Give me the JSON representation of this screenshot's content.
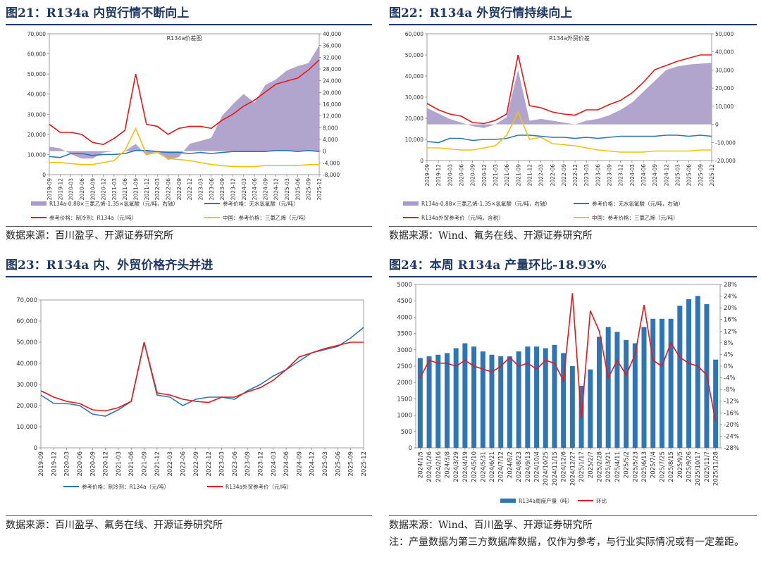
{
  "panels": [
    {
      "id": "p21",
      "title": "图21：R134a 内贸行情不断向上",
      "source": "数据来源：百川盈孚、开源证券研究所"
    },
    {
      "id": "p22",
      "title": "图22：R134a 外贸行情持续向上",
      "source": "数据来源：Wind、氟务在线、开源证券研究所"
    },
    {
      "id": "p23",
      "title": "图23：R134a 内、外贸价格齐头并进",
      "source": "数据来源：百川盈孚、氟务在线、开源证券研究所"
    },
    {
      "id": "p24",
      "title": "图24：本周 R134a 产量环比-18.93%",
      "source": "数据来源：Wind、百川盈孚、开源证券研究所",
      "note": "注：产量数据为第三方数据库数据，仅作为参考，与行业实际情况或有一定差距。"
    }
  ],
  "chart_data": [
    {
      "type": "line",
      "title": "R134a价差图",
      "x": [
        "2019-09",
        "2019-12",
        "2020-03",
        "2020-06",
        "2020-09",
        "2020-12",
        "2021-03",
        "2021-06",
        "2021-09",
        "2021-12",
        "2022-03",
        "2022-06",
        "2022-09",
        "2022-12",
        "2023-03",
        "2023-06",
        "2023-09",
        "2023-12",
        "2024-03",
        "2024-06",
        "2024-09",
        "2024-12",
        "2025-03",
        "2025-06",
        "2025-09",
        "2025-12"
      ],
      "ylim": [
        0,
        70000
      ],
      "yticks": [
        "0",
        "10,000",
        "20,000",
        "30,000",
        "40,000",
        "50,000",
        "60,000",
        "70,000"
      ],
      "y2lim": [
        -8000,
        40000
      ],
      "y2ticks": [
        "-8,000",
        "-4,000",
        "0",
        "4,000",
        "8,000",
        "12,000",
        "16,000",
        "20,000",
        "24,000",
        "28,000",
        "32,000",
        "36,000",
        "40,000"
      ],
      "series": [
        {
          "name": "R134a-0.88×三氯乙烯-1.35×氢氟酸（元/吨，右轴）",
          "type": "area",
          "axis": "right",
          "color": "#a99bc9",
          "values": [
            1500,
            1000,
            -1000,
            -2500,
            -2500,
            -500,
            0,
            0,
            2500,
            -1500,
            0,
            -3000,
            -2000,
            2500,
            3500,
            4500,
            12000,
            16000,
            19500,
            16500,
            22500,
            24500,
            27500,
            29000,
            30000,
            36000
          ]
        },
        {
          "name": "参考价格：无水氢氟酸（元/吨）",
          "axis": "left",
          "color": "#2e75b6",
          "values": [
            9000,
            8500,
            10500,
            10500,
            9500,
            10000,
            10000,
            10500,
            12000,
            12000,
            11500,
            11000,
            11000,
            10500,
            11000,
            10500,
            11000,
            11500,
            11500,
            11500,
            11500,
            12000,
            12000,
            11500,
            12000,
            11500
          ]
        },
        {
          "name": "参考价格：制冷剂：R134a（元/吨）",
          "axis": "left",
          "color": "#e8161b",
          "values": [
            25000,
            21000,
            21000,
            20000,
            16000,
            15000,
            18000,
            22000,
            50000,
            25000,
            24000,
            20000,
            23000,
            24000,
            24000,
            23000,
            27000,
            30000,
            34000,
            37000,
            41000,
            45000,
            46500,
            48000,
            52000,
            57000
          ]
        },
        {
          "name": "中国：参考价格：三氯乙烯（元/吨）",
          "axis": "left",
          "color": "#f2c010",
          "values": [
            6000,
            6000,
            5500,
            5000,
            5000,
            6000,
            7000,
            12000,
            23000,
            10000,
            11000,
            8000,
            7500,
            7000,
            6000,
            5000,
            4500,
            4000,
            4000,
            4000,
            4500,
            4500,
            4500,
            4500,
            5000,
            5000
          ]
        }
      ]
    },
    {
      "type": "line",
      "title": "R134a外贸价差",
      "x": [
        "2019-09",
        "2019-12",
        "2020-03",
        "2020-06",
        "2020-09",
        "2020-12",
        "2021-03",
        "2021-06",
        "2021-09",
        "2021-12",
        "2022-03",
        "2022-06",
        "2022-09",
        "2022-12",
        "2023-03",
        "2023-06",
        "2023-09",
        "2023-12",
        "2024-03",
        "2024-06",
        "2024-09",
        "2024-12",
        "2025-03",
        "2025-06",
        "2025-09",
        "2025-12"
      ],
      "ylim": [
        0,
        60000
      ],
      "yticks": [
        "0",
        "10,000",
        "20,000",
        "30,000",
        "40,000",
        "50,000",
        "60,000"
      ],
      "y2lim": [
        -20000,
        50000
      ],
      "y2ticks": [
        "-20,000",
        "-10,000",
        "0",
        "10,000",
        "20,000",
        "30,000",
        "40,000",
        "50,000"
      ],
      "series": [
        {
          "name": "R134a-0.88×三氯乙烯-1.35×氢氟酸（元/吨，右轴）",
          "type": "area",
          "axis": "right",
          "color": "#a99bc9",
          "values": [
            9000,
            6000,
            3000,
            1000,
            -1000,
            -2000,
            0,
            4000,
            30000,
            2000,
            3000,
            2000,
            1000,
            0,
            2000,
            3000,
            5000,
            8000,
            12000,
            18000,
            24000,
            30000,
            32000,
            33000,
            33500,
            34000
          ]
        },
        {
          "name": "参考价格：无水氢氟酸（元/吨，右轴）",
          "axis": "left",
          "color": "#2e75b6",
          "values": [
            9000,
            8500,
            10500,
            10500,
            9500,
            10000,
            10000,
            10500,
            12000,
            12000,
            11500,
            11000,
            11000,
            10500,
            11000,
            10500,
            11000,
            11500,
            11500,
            11500,
            11500,
            12000,
            12000,
            11500,
            12000,
            11500
          ]
        },
        {
          "name": "R134a外贸参考价（元/吨，含税）",
          "axis": "left",
          "color": "#e8161b",
          "values": [
            27000,
            24000,
            22000,
            21000,
            18000,
            17500,
            19000,
            22000,
            50000,
            26000,
            25000,
            23000,
            22000,
            21500,
            24000,
            24000,
            26500,
            28500,
            32000,
            37000,
            43000,
            45000,
            47000,
            48500,
            50000,
            50000
          ]
        },
        {
          "name": "中国：参考价格：三氯乙烯（元/吨）",
          "axis": "left",
          "color": "#f2c010",
          "values": [
            6000,
            6000,
            5500,
            5000,
            5000,
            6000,
            7000,
            12000,
            23000,
            10000,
            11000,
            8000,
            7500,
            7000,
            6000,
            5000,
            4500,
            4000,
            4000,
            4000,
            4500,
            4500,
            4500,
            4500,
            5000,
            5000
          ]
        }
      ]
    },
    {
      "type": "line",
      "x": [
        "2019-09",
        "2019-12",
        "2020-03",
        "2020-06",
        "2020-09",
        "2020-12",
        "2021-03",
        "2021-06",
        "2021-09",
        "2021-12",
        "2022-03",
        "2022-06",
        "2022-09",
        "2022-12",
        "2023-03",
        "2023-06",
        "2023-09",
        "2023-12",
        "2024-03",
        "2024-06",
        "2024-09",
        "2024-12",
        "2025-03",
        "2025-06",
        "2025-09",
        "2025-12"
      ],
      "ylim": [
        0,
        70000
      ],
      "yticks": [
        "0",
        "10,000",
        "20,000",
        "30,000",
        "40,000",
        "50,000",
        "60,000",
        "70,000"
      ],
      "series": [
        {
          "name": "参考价格：制冷剂：R134a（元/吨）",
          "color": "#2e75b6",
          "values": [
            25000,
            21000,
            21000,
            20000,
            16000,
            15000,
            18000,
            22000,
            50000,
            25000,
            24000,
            20000,
            23000,
            24000,
            24000,
            23000,
            27000,
            30000,
            34000,
            37000,
            41000,
            45000,
            46500,
            48000,
            52000,
            57000
          ]
        },
        {
          "name": "R134a外贸参考价（元/吨）",
          "color": "#e8161b",
          "values": [
            27000,
            24000,
            22000,
            21000,
            18000,
            17500,
            19000,
            22000,
            50000,
            26000,
            25000,
            23000,
            22000,
            21500,
            24000,
            24000,
            26500,
            28500,
            32000,
            37000,
            43000,
            45000,
            47000,
            48500,
            50000,
            50000
          ]
        }
      ]
    },
    {
      "type": "bar",
      "categories": [
        "2024/1/5",
        "2024/1/26",
        "2024/2/16",
        "2024/3/8",
        "2024/3/29",
        "2024/4/19",
        "2024/5/10",
        "2024/5/31",
        "2024/6/21",
        "2024/7/12",
        "2024/8/2",
        "2024/8/23",
        "2024/9/13",
        "2024/10/4",
        "2024/10/25",
        "2024/11/15",
        "2024/12/6",
        "2024/12/27",
        "2025/1/17",
        "2025/2/7",
        "2025/2/28",
        "2025/3/21",
        "2025/4/11",
        "2025/5/2",
        "2025/5/23",
        "2025/6/13",
        "2025/7/4",
        "2025/7/25",
        "2025/8/15",
        "2025/9/5",
        "2025/9/26",
        "2025/10/17",
        "2025/11/7",
        "2025/11/28"
      ],
      "ylim": [
        0,
        5000
      ],
      "yticks": [
        "0",
        "500",
        "1000",
        "1500",
        "2000",
        "2500",
        "3000",
        "3500",
        "4000",
        "4500",
        "5000"
      ],
      "y2lim": [
        -0.28,
        0.28
      ],
      "y2ticks": [
        "-28%",
        "-24%",
        "-20%",
        "-16%",
        "-12%",
        "-8%",
        "-4%",
        "0%",
        "4%",
        "8%",
        "12%",
        "16%",
        "20%",
        "24%",
        "28%"
      ],
      "series": [
        {
          "name": "R134a周度产量（吨）",
          "type": "bar",
          "axis": "left",
          "color": "#2e75b6",
          "values": [
            2750,
            2800,
            2850,
            2900,
            3050,
            3200,
            3100,
            2950,
            2850,
            2800,
            2800,
            2950,
            3100,
            3100,
            3050,
            3150,
            2900,
            2500,
            1900,
            2400,
            3400,
            3700,
            3550,
            3300,
            3200,
            3700,
            3950,
            3950,
            3950,
            4350,
            4550,
            4650,
            4400,
            2700
          ]
        },
        {
          "name": "环比",
          "type": "line",
          "axis": "right",
          "color": "#e8161b",
          "values": [
            -0.04,
            0.02,
            0.01,
            0.01,
            0.0,
            0.02,
            0.0,
            -0.01,
            -0.02,
            0.0,
            0.03,
            0.0,
            0.01,
            -0.01,
            0.02,
            0.01,
            -0.05,
            0.25,
            -0.18,
            0.19,
            0.12,
            -0.04,
            0.02,
            -0.03,
            0.04,
            0.21,
            0.02,
            0.0,
            0.08,
            0.03,
            0.01,
            0.0,
            -0.03,
            -0.1893
          ]
        }
      ]
    }
  ]
}
